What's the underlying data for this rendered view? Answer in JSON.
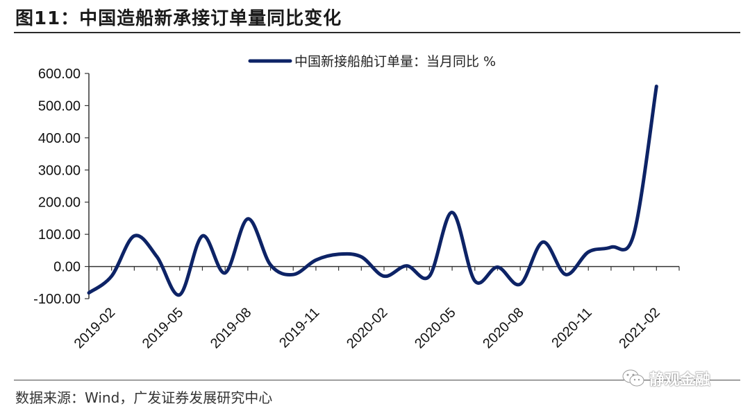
{
  "title": "图11：中国造船新承接订单量同比变化",
  "source": "数据来源：Wind，广发证券发展研究中心",
  "watermark": "静观金融",
  "chart_data": {
    "type": "line",
    "title": "",
    "xlabel": "",
    "ylabel": "",
    "ylim": [
      -100,
      600
    ],
    "yticks": [
      -100,
      0,
      100,
      200,
      300,
      400,
      500,
      600
    ],
    "ytick_labels": [
      "-100.00",
      "0.00",
      "100.00",
      "200.00",
      "300.00",
      "400.00",
      "500.00",
      "600.00"
    ],
    "xtick_labels": [
      "2019-02",
      "2019-05",
      "2019-08",
      "2019-11",
      "2020-02",
      "2020-05",
      "2020-08",
      "2020-11",
      "2021-02"
    ],
    "grid": false,
    "legend_position": "top-center",
    "categories": [
      "2019-01",
      "2019-02",
      "2019-03",
      "2019-04",
      "2019-05",
      "2019-06",
      "2019-07",
      "2019-08",
      "2019-09",
      "2019-10",
      "2019-11",
      "2019-12",
      "2020-01",
      "2020-02",
      "2020-03",
      "2020-04",
      "2020-05",
      "2020-06",
      "2020-07",
      "2020-08",
      "2020-09",
      "2020-10",
      "2020-11",
      "2020-12",
      "2021-01",
      "2021-02",
      "2021-03"
    ],
    "series": [
      {
        "name": "中国新接船舶订单量：当月同比 %",
        "color": "#0d2366",
        "values": [
          -82,
          -30,
          95,
          30,
          -88,
          95,
          -20,
          148,
          5,
          -25,
          20,
          38,
          30,
          -30,
          2,
          -30,
          168,
          -45,
          -2,
          -55,
          76,
          -25,
          45,
          60,
          100,
          560,
          null
        ]
      }
    ]
  }
}
